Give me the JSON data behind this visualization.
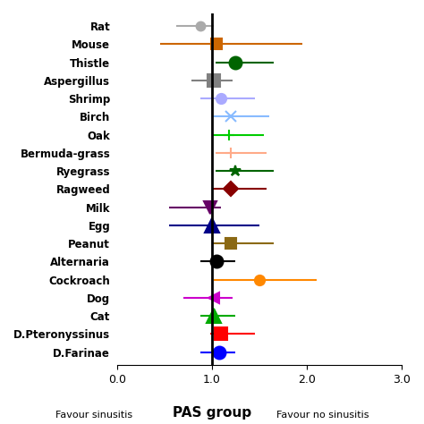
{
  "labels": [
    "Rat",
    "Mouse",
    "Thistle",
    "Aspergillus",
    "Shrimp",
    "Birch",
    "Oak",
    "Bermuda-grass",
    "Ryegrass",
    "Ragweed",
    "Milk",
    "Egg",
    "Peanut",
    "Alternaria",
    "Cockroach",
    "Dog",
    "Cat",
    "D.Pteronyssinus",
    "D.Farinae"
  ],
  "centers": [
    0.88,
    1.05,
    1.25,
    1.02,
    1.1,
    1.2,
    1.18,
    1.2,
    1.25,
    1.2,
    0.98,
    1.0,
    1.2,
    1.05,
    1.5,
    1.02,
    1.02,
    1.1,
    1.08
  ],
  "ci_low": [
    0.62,
    0.45,
    1.04,
    0.78,
    0.88,
    1.0,
    1.0,
    1.04,
    1.04,
    1.0,
    0.55,
    0.55,
    1.0,
    0.88,
    1.02,
    0.7,
    0.88,
    0.98,
    0.88
  ],
  "ci_high": [
    1.02,
    1.95,
    1.65,
    1.22,
    1.45,
    1.6,
    1.55,
    1.58,
    1.65,
    1.58,
    1.1,
    1.5,
    1.65,
    1.25,
    2.1,
    1.22,
    1.25,
    1.45,
    1.25
  ],
  "colors": [
    "#aaaaaa",
    "#cc6600",
    "#006400",
    "#808080",
    "#aaaaff",
    "#88bbff",
    "#00cc00",
    "#ffaa88",
    "#006400",
    "#880000",
    "#660066",
    "#000088",
    "#8b6914",
    "#000000",
    "#ff8800",
    "#cc00cc",
    "#00aa00",
    "#ff0000",
    "#0000ff"
  ],
  "markers": [
    "o",
    "s",
    "o",
    "s",
    "o",
    "x",
    "+",
    "+",
    "*",
    "D",
    "v",
    "^",
    "s",
    "o",
    "o",
    "<",
    "^",
    "s",
    "o"
  ],
  "marker_sizes": [
    7,
    9,
    10,
    10,
    8,
    9,
    9,
    8,
    9,
    8,
    10,
    11,
    9,
    10,
    8,
    9,
    11,
    10,
    10
  ],
  "xlim": [
    0.0,
    3.0
  ],
  "xticks": [
    0.0,
    1.0,
    2.0,
    3.0
  ],
  "xlabel": "PAS group",
  "x_label_left": "Favour sinusitis",
  "x_label_right": "Favour no sinusitis",
  "vline_x": 1.0,
  "figsize": [
    4.74,
    4.74
  ],
  "dpi": 100,
  "label_fontsize": 8.5,
  "tick_fontsize": 9
}
